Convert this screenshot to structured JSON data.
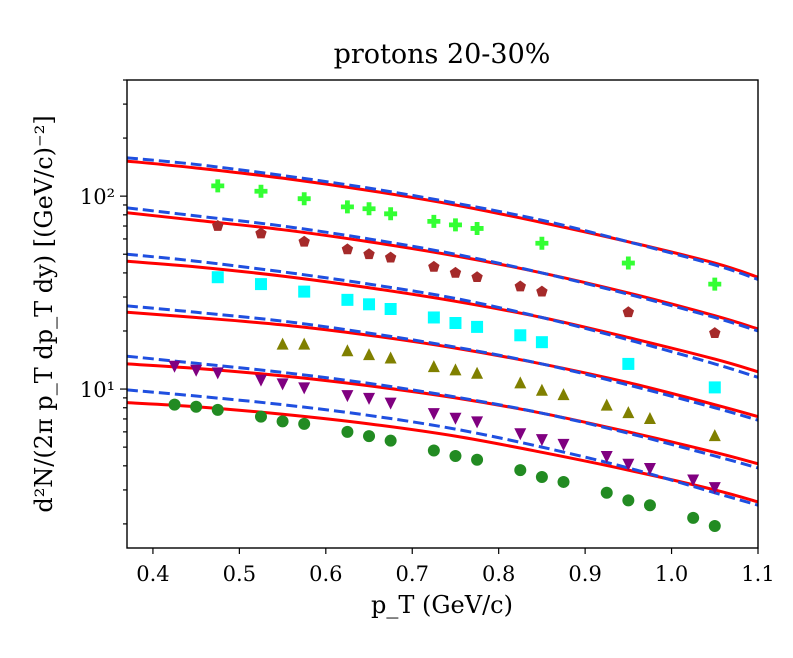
{
  "chart_data": {
    "type": "scatter",
    "title": "protons 20-30%",
    "xlabel": "p_T (GeV/c)",
    "ylabel": "d²N/(2π p_T dp_T dy)  [(GeV/c)⁻²]",
    "xlim": [
      0.37,
      1.1
    ],
    "ylim": [
      1.5,
      400
    ],
    "yscale": "log",
    "x_ticks": [
      0.4,
      0.5,
      0.6,
      0.7,
      0.8,
      0.9,
      1.0,
      1.1
    ],
    "x_tick_labels": [
      "0.4",
      "0.5",
      "0.6",
      "0.7",
      "0.8",
      "0.9",
      "1.0",
      "1.1"
    ],
    "y_major_ticks": [
      10,
      100
    ],
    "y_tick_labels": [
      "10¹",
      "10²"
    ],
    "colors": {
      "solid_line": "#ff0000",
      "dashed_line": "#1f4fe0"
    },
    "series": [
      {
        "name": "data-1",
        "marker": "plus",
        "color": "#33ff33",
        "x": [
          0.475,
          0.525,
          0.575,
          0.625,
          0.65,
          0.675,
          0.725,
          0.75,
          0.775,
          0.85,
          0.95,
          1.05
        ],
        "y": [
          113,
          106,
          97,
          88,
          86,
          81,
          74,
          71,
          68,
          57,
          45,
          35
        ]
      },
      {
        "name": "data-2",
        "marker": "pentagon",
        "color": "#a52a2a",
        "x": [
          0.475,
          0.525,
          0.575,
          0.625,
          0.65,
          0.675,
          0.725,
          0.75,
          0.775,
          0.825,
          0.85,
          0.95,
          1.05
        ],
        "y": [
          70,
          64,
          58,
          53,
          50,
          48,
          43,
          40,
          38,
          34,
          32,
          25,
          19.5
        ]
      },
      {
        "name": "data-3",
        "marker": "square",
        "color": "#00ffff",
        "x": [
          0.475,
          0.525,
          0.575,
          0.625,
          0.65,
          0.675,
          0.725,
          0.75,
          0.775,
          0.825,
          0.85,
          0.95,
          1.05
        ],
        "y": [
          38,
          35,
          32,
          29,
          27.5,
          26,
          23.5,
          22,
          21,
          19,
          17.5,
          13.5,
          10.2
        ]
      },
      {
        "name": "data-4",
        "marker": "triangle-up",
        "color": "#808000",
        "x": [
          0.55,
          0.575,
          0.625,
          0.65,
          0.675,
          0.725,
          0.75,
          0.775,
          0.825,
          0.85,
          0.875,
          0.925,
          0.95,
          0.975,
          1.05
        ],
        "y": [
          17,
          17,
          15.7,
          15,
          14.4,
          13,
          12.5,
          12,
          10.7,
          9.8,
          9.3,
          8.2,
          7.5,
          7,
          5.7
        ]
      },
      {
        "name": "data-5",
        "marker": "triangle-down",
        "color": "#800080",
        "x": [
          0.425,
          0.45,
          0.475,
          0.525,
          0.55,
          0.575,
          0.625,
          0.65,
          0.675,
          0.725,
          0.75,
          0.775,
          0.825,
          0.85,
          0.875,
          0.925,
          0.95,
          0.975,
          1.025,
          1.05
        ],
        "y": [
          13.2,
          12.6,
          12.2,
          11.2,
          10.7,
          10.2,
          9.3,
          9,
          8.5,
          7.5,
          7.1,
          6.8,
          5.9,
          5.5,
          5.2,
          4.5,
          4.1,
          3.9,
          3.4,
          3.1
        ]
      },
      {
        "name": "data-6",
        "marker": "circle",
        "color": "#228b22",
        "x": [
          0.425,
          0.45,
          0.475,
          0.525,
          0.55,
          0.575,
          0.625,
          0.65,
          0.675,
          0.725,
          0.75,
          0.775,
          0.825,
          0.85,
          0.875,
          0.925,
          0.95,
          0.975,
          1.025,
          1.05
        ],
        "y": [
          8.3,
          8.1,
          7.8,
          7.2,
          6.8,
          6.6,
          6,
          5.7,
          5.4,
          4.8,
          4.5,
          4.3,
          3.8,
          3.5,
          3.3,
          2.9,
          2.65,
          2.5,
          2.15,
          1.95
        ]
      }
    ],
    "curves": [
      {
        "name": "model-1",
        "style": "solid",
        "color": "#ff0000",
        "x": [
          0.37,
          0.45,
          0.55,
          0.65,
          0.75,
          0.85,
          0.95,
          1.05,
          1.1
        ],
        "y": [
          152,
          140,
          124,
          107,
          90,
          73,
          58,
          45,
          38
        ]
      },
      {
        "name": "model-2",
        "style": "dashed",
        "color": "#1f4fe0",
        "x": [
          0.37,
          0.45,
          0.55,
          0.65,
          0.75,
          0.85,
          0.95,
          1.05,
          1.1
        ],
        "y": [
          158,
          146,
          128,
          110,
          92,
          75,
          58,
          44,
          37
        ]
      },
      {
        "name": "model-3",
        "style": "solid",
        "color": "#ff0000",
        "x": [
          0.37,
          0.45,
          0.55,
          0.65,
          0.75,
          0.85,
          0.95,
          1.05,
          1.1
        ],
        "y": [
          82,
          75,
          67,
          58,
          49,
          40,
          31.5,
          24,
          20.5
        ]
      },
      {
        "name": "model-4",
        "style": "dashed",
        "color": "#1f4fe0",
        "x": [
          0.37,
          0.45,
          0.55,
          0.65,
          0.75,
          0.85,
          0.95,
          1.05,
          1.1
        ],
        "y": [
          87,
          79,
          70,
          60,
          50,
          40,
          31,
          23.5,
          20
        ]
      },
      {
        "name": "model-5",
        "style": "solid",
        "color": "#ff0000",
        "x": [
          0.37,
          0.45,
          0.55,
          0.65,
          0.75,
          0.85,
          0.95,
          1.05,
          1.1
        ],
        "y": [
          46,
          43,
          38.5,
          33.5,
          28.5,
          23.5,
          18.5,
          14.3,
          12.3
        ]
      },
      {
        "name": "model-6",
        "style": "dashed",
        "color": "#1f4fe0",
        "x": [
          0.37,
          0.45,
          0.55,
          0.65,
          0.75,
          0.85,
          0.95,
          1.05,
          1.1
        ],
        "y": [
          50,
          46,
          40.5,
          35,
          29.5,
          23.5,
          18,
          13.5,
          11.5
        ]
      },
      {
        "name": "model-7",
        "style": "solid",
        "color": "#ff0000",
        "x": [
          0.37,
          0.45,
          0.55,
          0.65,
          0.75,
          0.85,
          0.95,
          1.05,
          1.1
        ],
        "y": [
          25,
          23.5,
          21.5,
          19,
          16.3,
          13.5,
          10.8,
          8.3,
          7.2
        ]
      },
      {
        "name": "model-8",
        "style": "dashed",
        "color": "#1f4fe0",
        "x": [
          0.37,
          0.45,
          0.55,
          0.65,
          0.75,
          0.85,
          0.95,
          1.05,
          1.1
        ],
        "y": [
          27,
          25,
          22.5,
          19.5,
          16.5,
          13.5,
          10.5,
          8,
          6.9
        ]
      },
      {
        "name": "model-9",
        "style": "solid",
        "color": "#ff0000",
        "x": [
          0.37,
          0.45,
          0.55,
          0.65,
          0.75,
          0.85,
          0.95,
          1.05,
          1.1
        ],
        "y": [
          13.5,
          12.8,
          11.7,
          10.4,
          9,
          7.5,
          6,
          4.7,
          4.1
        ]
      },
      {
        "name": "model-10",
        "style": "dashed",
        "color": "#1f4fe0",
        "x": [
          0.37,
          0.45,
          0.55,
          0.65,
          0.75,
          0.85,
          0.95,
          1.05,
          1.1
        ],
        "y": [
          14.8,
          13.6,
          12.2,
          10.7,
          9.1,
          7.5,
          5.9,
          4.5,
          3.9
        ]
      },
      {
        "name": "model-11",
        "style": "solid",
        "color": "#ff0000",
        "x": [
          0.37,
          0.45,
          0.55,
          0.65,
          0.75,
          0.85,
          0.95,
          1.05,
          1.1
        ],
        "y": [
          8.5,
          8.1,
          7.4,
          6.6,
          5.7,
          4.7,
          3.8,
          3,
          2.6
        ]
      },
      {
        "name": "model-12",
        "style": "dashed",
        "color": "#1f4fe0",
        "x": [
          0.37,
          0.45,
          0.55,
          0.65,
          0.75,
          0.85,
          0.95,
          1.05,
          1.1
        ],
        "y": [
          9.9,
          9.2,
          8.3,
          7.3,
          6.2,
          5,
          3.9,
          2.9,
          2.5
        ]
      }
    ]
  }
}
